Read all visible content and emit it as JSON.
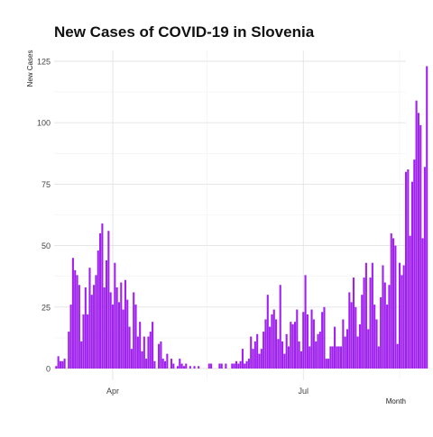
{
  "chart_data": {
    "type": "bar",
    "title": "New Cases of COVID-19 in Slovenia",
    "xlabel": "Month",
    "ylabel": "New Cases",
    "ylim": [
      0,
      125
    ],
    "xlim": [
      "2020-03-04",
      "2020-08-19"
    ],
    "grid": true,
    "bar_color": "#a020f0",
    "y_ticks": [
      "0",
      "25",
      "50",
      "75",
      "100",
      "125"
    ],
    "x_ticks": [
      {
        "label": "Apr",
        "date": "2020-04-01"
      },
      {
        "label": "Jul",
        "date": "2020-07-01"
      }
    ],
    "x_minor_breaks": [
      "2020-03-01",
      "2020-05-16",
      "2020-08-16"
    ],
    "start_date": "2020-03-05",
    "values": [
      1,
      5,
      3,
      3,
      4,
      0,
      15,
      26,
      45,
      40,
      38,
      34,
      11,
      22,
      33,
      22,
      41,
      30,
      34,
      38,
      48,
      55,
      59,
      33,
      44,
      56,
      31,
      26,
      43,
      33,
      27,
      35,
      24,
      36,
      28,
      17,
      8,
      31,
      26,
      13,
      19,
      7,
      13,
      4,
      13,
      15,
      19,
      3,
      0,
      10,
      11,
      4,
      3,
      6,
      0,
      4,
      2,
      0,
      1,
      4,
      2,
      1,
      2,
      0,
      1,
      0,
      1,
      0,
      1,
      0,
      0,
      0,
      0,
      2,
      2,
      0,
      0,
      0,
      2,
      2,
      0,
      2,
      0,
      0,
      2,
      2,
      3,
      2,
      3,
      8,
      2,
      3,
      4,
      13,
      8,
      11,
      14,
      6,
      8,
      15,
      20,
      30,
      17,
      22,
      24,
      20,
      12,
      34,
      11,
      6,
      14,
      9,
      19,
      18,
      19,
      24,
      11,
      7,
      23,
      38,
      22,
      9,
      24,
      20,
      11,
      14,
      15,
      23,
      25,
      4,
      4,
      9,
      9,
      17,
      9,
      9,
      9,
      20,
      13,
      16,
      31,
      27,
      37,
      25,
      13,
      18,
      30,
      37,
      43,
      16,
      37,
      43,
      26,
      20,
      9,
      29,
      42,
      35,
      26,
      34,
      55,
      53,
      50,
      10,
      43,
      38,
      42,
      80,
      81,
      54,
      76,
      85,
      109,
      104,
      99,
      53,
      82,
      123
    ]
  }
}
